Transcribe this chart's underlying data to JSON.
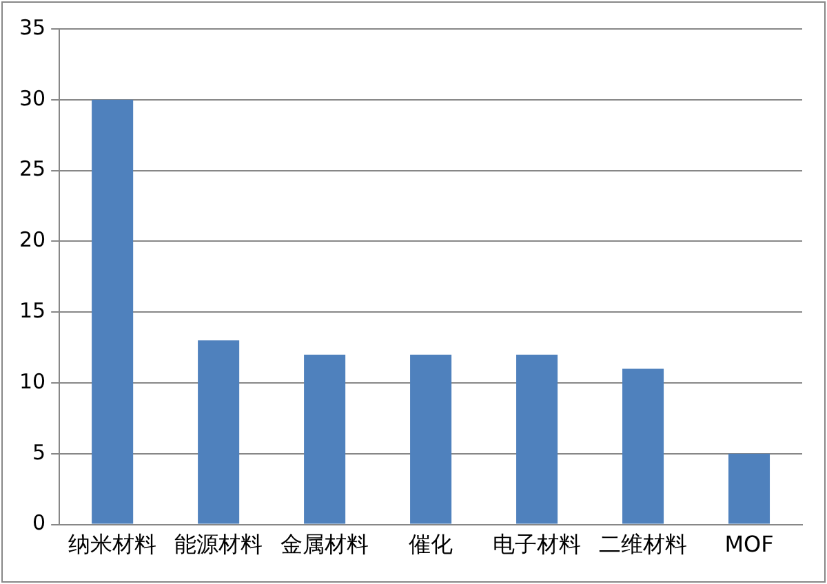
{
  "chart_data": {
    "type": "bar",
    "categories": [
      "纳米材料",
      "能源材料",
      "金属材料",
      "催化",
      "电子材料",
      "二维材料",
      "MOF"
    ],
    "values": [
      30,
      13,
      12,
      12,
      12,
      11,
      5
    ],
    "color": "#4f81bd",
    "ylim": [
      0,
      35
    ],
    "yticks": [
      0,
      5,
      10,
      15,
      20,
      25,
      30,
      35
    ],
    "grid": "y",
    "legend": false
  }
}
